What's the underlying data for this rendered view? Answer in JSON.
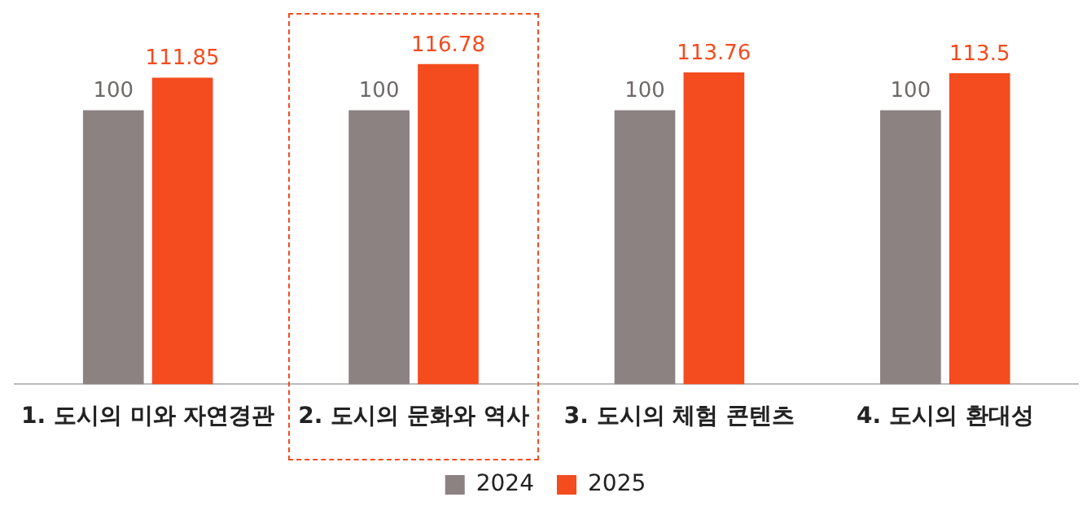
{
  "chart_data": {
    "type": "bar",
    "categories": [
      "1. 도시의 미와 자연경관",
      "2. 도시의 문화와 역사",
      "3. 도시의 체험 콘텐츠",
      "4. 도시의 환대성"
    ],
    "series": [
      {
        "name": "2024",
        "color": "#8c8282",
        "values": [
          100,
          100,
          100,
          100
        ]
      },
      {
        "name": "2025",
        "color": "#f44b1f",
        "values": [
          111.85,
          116.78,
          113.76,
          113.5
        ]
      }
    ],
    "data_labels": true,
    "legend": "bottom",
    "grid": false,
    "tick_labels": "x"
  }
}
